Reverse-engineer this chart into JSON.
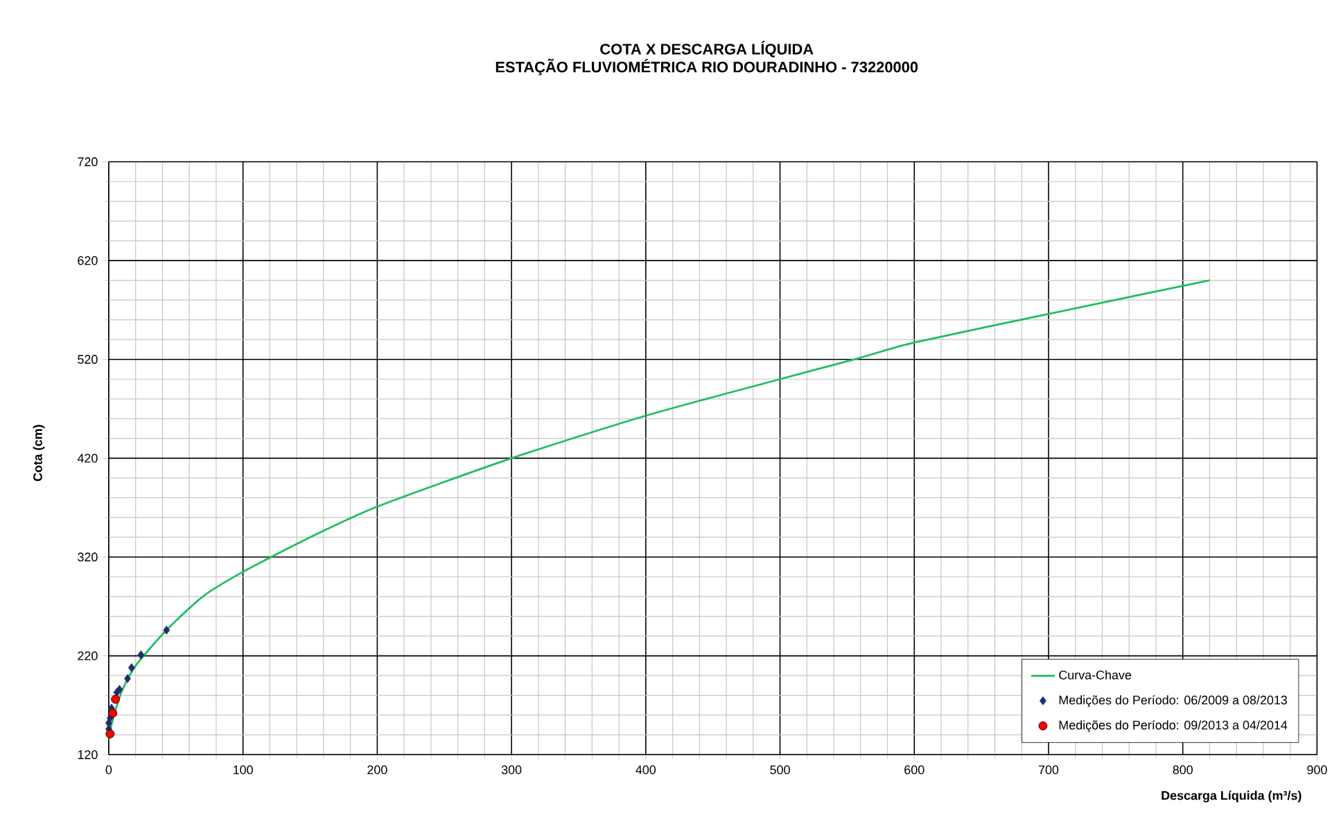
{
  "chart_data": {
    "type": "scatter",
    "title": "COTA X DESCARGA LÍQUIDA",
    "subtitle": "ESTAÇÃO FLUVIOMÉTRICA RIO DOURADINHO - 73220000",
    "xlabel": "Descarga Líquida (m³/s)",
    "ylabel": "Cota (cm)",
    "xlim": [
      0,
      900
    ],
    "ylim": [
      120,
      720
    ],
    "xticks": [
      0,
      100,
      200,
      300,
      400,
      500,
      600,
      700,
      800,
      900
    ],
    "yticks": [
      120,
      220,
      320,
      420,
      520,
      620,
      720
    ],
    "grid": true,
    "legend": "bottom right",
    "series": [
      {
        "name": "Curva-Chave",
        "type": "line",
        "marker": "none",
        "color": "#1fbf5f",
        "x": [
          0,
          2,
          5,
          10,
          20,
          43,
          70,
          100,
          150,
          200,
          300,
          400,
          500,
          558,
          600,
          700,
          820
        ],
        "values": [
          135,
          150,
          165,
          185,
          210,
          246,
          280,
          305,
          340,
          371,
          420,
          463,
          500,
          521,
          537,
          566,
          600
        ]
      },
      {
        "name": "Medições do Período: 06/2009 a 08/2013",
        "marker": "diamond",
        "color": "#1f2d6e",
        "x": [
          0,
          0,
          1,
          2,
          6,
          8,
          14,
          17,
          24,
          43
        ],
        "values": [
          146,
          152,
          157,
          167,
          183,
          186,
          197,
          208,
          221,
          246
        ]
      },
      {
        "name": "Medições do Período: 09/2013 a 04/2014",
        "marker": "circle",
        "color": "#ff0000",
        "x": [
          1,
          3,
          5
        ],
        "values": [
          141,
          162,
          176
        ]
      }
    ]
  }
}
